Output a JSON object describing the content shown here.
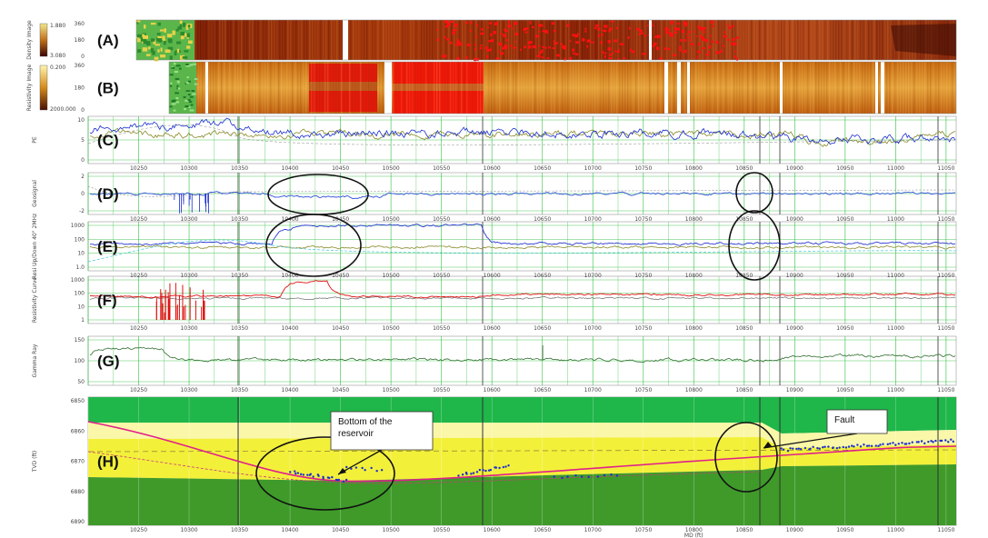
{
  "chart_data": {
    "type": "line",
    "tracks": [
      {
        "id": "(A)",
        "kind": "image",
        "ylabel": "Density Image",
        "scale_top": "1.880",
        "scale_bottom": "3.080",
        "yticks": [
          "360",
          "180",
          "0"
        ]
      },
      {
        "id": "(B)",
        "kind": "image",
        "ylabel": "Resistivity Image",
        "scale_top": "0.200",
        "scale_bottom": "2000.000",
        "yticks": [
          "360",
          "180",
          "0"
        ]
      },
      {
        "id": "(C)",
        "kind": "line",
        "ylabel": "PE",
        "yticks": [
          "10",
          "5",
          "0"
        ]
      },
      {
        "id": "(D)",
        "kind": "line",
        "ylabel": "Geosignal",
        "yticks": [
          "2",
          "0",
          "-2"
        ]
      },
      {
        "id": "(E)",
        "kind": "line",
        "ylabel": "Resi Up/Down 40\" 2MHz",
        "yticks": [
          "1000",
          "100",
          "10",
          "1.0"
        ]
      },
      {
        "id": "(F)",
        "kind": "line",
        "ylabel": "Resistivity Curve",
        "yticks": [
          "1000",
          "100",
          "10",
          "1"
        ]
      },
      {
        "id": "(G)",
        "kind": "line",
        "ylabel": "Gamma Ray",
        "yticks": [
          "150",
          "100",
          "50"
        ]
      },
      {
        "id": "(H)",
        "kind": "model",
        "ylabel": "TVD (ft)",
        "yticks": [
          "6850",
          "6860",
          "6870",
          "6880",
          "6890"
        ]
      }
    ],
    "x_ticks": [
      "10250",
      "10300",
      "10350",
      "10400",
      "10450",
      "10500",
      "10550",
      "10600",
      "10650",
      "10700",
      "10750",
      "10800",
      "10850",
      "10900",
      "10950",
      "11000",
      "11050"
    ],
    "xlabel": "MD (ft)",
    "xlim": [
      10200,
      11060
    ],
    "annotations": [
      {
        "text_lines": [
          "Bottom of the",
          "reservoir"
        ]
      },
      {
        "text_lines": [
          "Fault"
        ]
      }
    ],
    "colors": {
      "grid": "#22bb33",
      "pe_blue": "#1a2ecf",
      "pe_olive": "#8a8a2a",
      "resistivity_red": "#e01010",
      "gamma_green": "#2e6e2e",
      "trajectory": "#e0208a",
      "model_green": "#1fb64a",
      "model_dark_green": "#3f9a2a",
      "model_yellow": "#f3f03a",
      "model_light_yellow": "#faf7a8"
    }
  }
}
